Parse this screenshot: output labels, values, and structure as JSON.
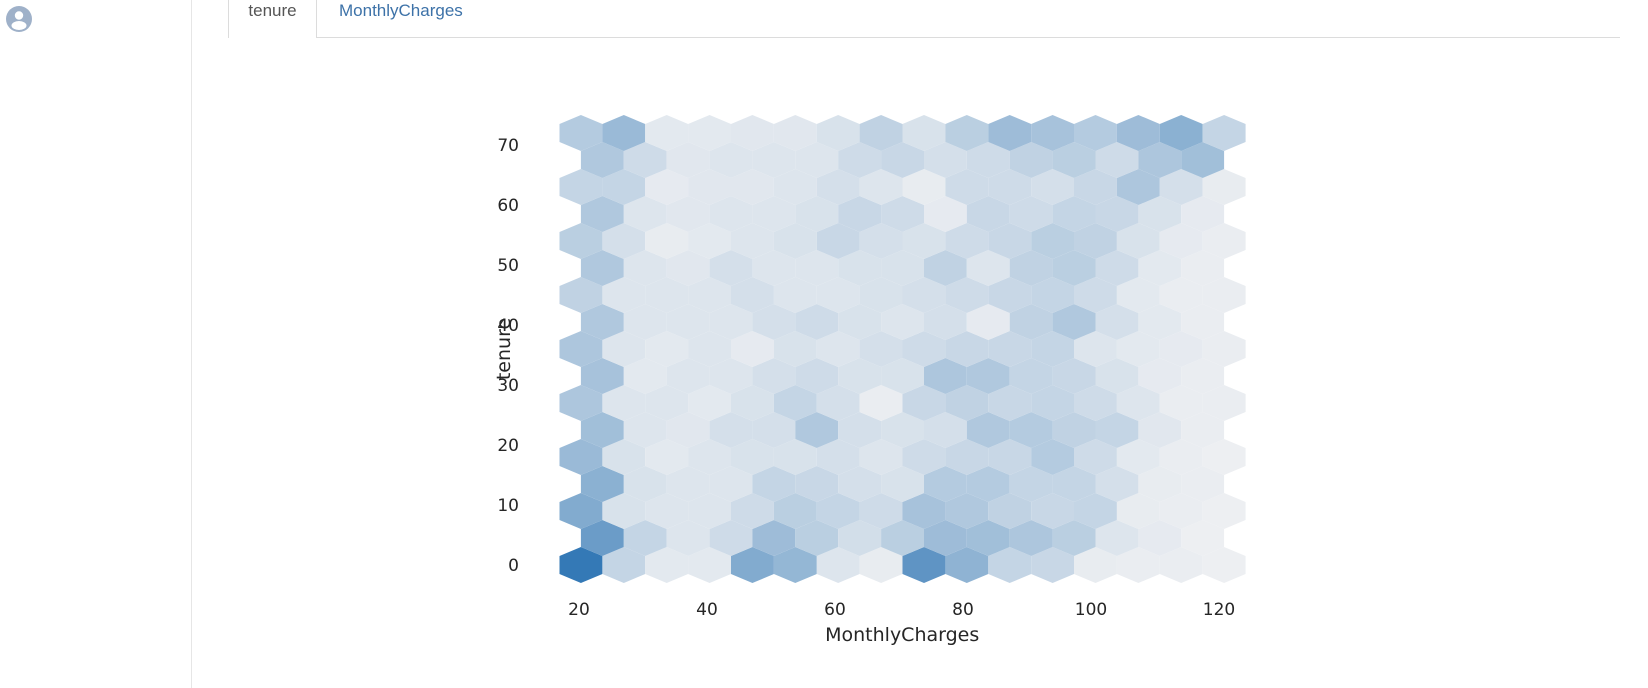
{
  "tabs": {
    "active_label": "tenure",
    "other_label": "MonthlyCharges"
  },
  "chart_data": {
    "type": "heatmap",
    "subtype": "hexbin",
    "title": "",
    "xlabel": "MonthlyCharges",
    "ylabel": "tenure",
    "xlim": [
      15,
      124
    ],
    "ylim": [
      -3,
      77
    ],
    "x_ticks": [
      20,
      40,
      60,
      80,
      100,
      120
    ],
    "y_ticks": [
      0,
      10,
      20,
      30,
      40,
      50,
      60,
      70
    ],
    "hex_width": 6.7,
    "hex_row_step": 4.5,
    "grid_on": false,
    "colormap": "Blues",
    "color_low": "#f0f1f3",
    "color_high": "#3479b6",
    "value_scale": "relative density 0-100",
    "row_y": [
      0,
      4.5,
      9,
      13.5,
      18,
      22.5,
      27,
      31.5,
      36,
      40.5,
      45,
      49.5,
      54,
      58.5,
      63,
      67.5,
      72
    ],
    "even_row_x": [
      20.3,
      27,
      33.7,
      40.4,
      47.1,
      53.8,
      60.5,
      67.2,
      73.9,
      80.6,
      87.3,
      94,
      100.7,
      107.4,
      114.1,
      120.8
    ],
    "odd_row_x": [
      23.65,
      30.35,
      37.05,
      43.75,
      50.45,
      57.15,
      63.85,
      70.55,
      77.25,
      83.95,
      90.65,
      97.35,
      104.05,
      110.75,
      117.45
    ],
    "density": [
      [
        100,
        20,
        5,
        5,
        55,
        45,
        8,
        3,
        75,
        48,
        20,
        18,
        3,
        2,
        2,
        1
      ],
      [
        68,
        20,
        8,
        15,
        40,
        25,
        13,
        25,
        40,
        38,
        32,
        25,
        8,
        4,
        1
      ],
      [
        55,
        10,
        8,
        8,
        15,
        25,
        20,
        15,
        35,
        30,
        22,
        18,
        20,
        3,
        2,
        1
      ],
      [
        50,
        10,
        8,
        8,
        20,
        18,
        12,
        10,
        28,
        28,
        20,
        20,
        12,
        3,
        2
      ],
      [
        42,
        10,
        5,
        8,
        10,
        10,
        12,
        8,
        15,
        18,
        18,
        28,
        15,
        5,
        2,
        1
      ],
      [
        38,
        8,
        6,
        12,
        12,
        30,
        12,
        10,
        12,
        30,
        28,
        22,
        20,
        6,
        2
      ],
      [
        32,
        8,
        8,
        5,
        10,
        20,
        12,
        2,
        18,
        22,
        18,
        20,
        15,
        8,
        2,
        2
      ],
      [
        35,
        5,
        8,
        8,
        12,
        15,
        10,
        10,
        32,
        30,
        20,
        18,
        10,
        4,
        2
      ],
      [
        32,
        8,
        5,
        8,
        4,
        10,
        8,
        12,
        15,
        18,
        18,
        20,
        8,
        5,
        4,
        2
      ],
      [
        30,
        8,
        8,
        8,
        12,
        15,
        10,
        8,
        12,
        4,
        22,
        30,
        12,
        5,
        2
      ],
      [
        22,
        8,
        8,
        8,
        12,
        8,
        8,
        10,
        12,
        15,
        18,
        20,
        15,
        5,
        2,
        2
      ],
      [
        30,
        8,
        6,
        12,
        8,
        8,
        10,
        10,
        22,
        8,
        22,
        25,
        15,
        5,
        2
      ],
      [
        25,
        12,
        3,
        5,
        8,
        10,
        18,
        12,
        10,
        15,
        18,
        25,
        22,
        10,
        4,
        2
      ],
      [
        30,
        8,
        6,
        8,
        8,
        10,
        18,
        15,
        4,
        18,
        15,
        20,
        18,
        10,
        4
      ],
      [
        20,
        20,
        4,
        6,
        6,
        8,
        12,
        8,
        3,
        15,
        15,
        12,
        18,
        32,
        12,
        3
      ],
      [
        30,
        15,
        6,
        8,
        8,
        8,
        15,
        18,
        12,
        15,
        22,
        25,
        15,
        32,
        38,
        12
      ],
      [
        28,
        42,
        5,
        5,
        6,
        6,
        10,
        22,
        10,
        25,
        40,
        35,
        28,
        40,
        50,
        20
      ]
    ]
  }
}
